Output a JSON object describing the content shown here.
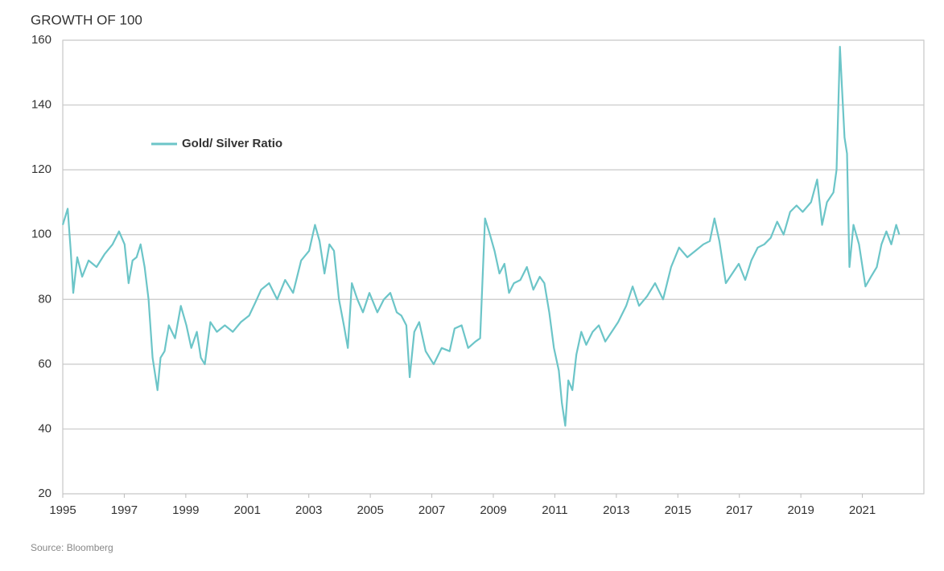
{
  "chart_data": {
    "type": "line",
    "title": "GROWTH OF 100",
    "source": "Source: Bloomberg",
    "x": [
      1995.0,
      1995.16,
      1995.26,
      1995.34,
      1995.47,
      1995.63,
      1995.84,
      1996.1,
      1996.36,
      1996.62,
      1996.83,
      1997.01,
      1997.14,
      1997.27,
      1997.4,
      1997.53,
      1997.66,
      1997.79,
      1997.92,
      1998.08,
      1998.18,
      1998.31,
      1998.45,
      1998.65,
      1998.84,
      1999.02,
      1999.18,
      1999.36,
      1999.49,
      1999.62,
      1999.8,
      2000.01,
      2000.27,
      2000.53,
      2000.79,
      2001.06,
      2001.26,
      2001.45,
      2001.71,
      2001.97,
      2002.23,
      2002.49,
      2002.75,
      2003.01,
      2003.2,
      2003.35,
      2003.51,
      2003.67,
      2003.82,
      2003.98,
      2004.14,
      2004.27,
      2004.4,
      2004.58,
      2004.76,
      2004.97,
      2005.23,
      2005.44,
      2005.65,
      2005.86,
      2006.01,
      2006.17,
      2006.28,
      2006.43,
      2006.59,
      2006.8,
      2007.06,
      2007.32,
      2007.58,
      2007.74,
      2007.97,
      2008.18,
      2008.42,
      2008.57,
      2008.73,
      2008.89,
      2009.04,
      2009.2,
      2009.36,
      2009.51,
      2009.67,
      2009.88,
      2010.09,
      2010.3,
      2010.51,
      2010.66,
      2010.82,
      2010.97,
      2011.13,
      2011.23,
      2011.34,
      2011.44,
      2011.57,
      2011.7,
      2011.86,
      2012.02,
      2012.23,
      2012.43,
      2012.64,
      2012.85,
      2013.06,
      2013.32,
      2013.53,
      2013.74,
      2014.0,
      2014.26,
      2014.52,
      2014.78,
      2015.04,
      2015.31,
      2015.57,
      2015.83,
      2016.04,
      2016.19,
      2016.35,
      2016.56,
      2016.77,
      2016.98,
      2017.19,
      2017.39,
      2017.6,
      2017.81,
      2018.02,
      2018.23,
      2018.44,
      2018.65,
      2018.86,
      2019.06,
      2019.33,
      2019.53,
      2019.69,
      2019.85,
      2020.06,
      2020.16,
      2020.27,
      2020.34,
      2020.42,
      2020.5,
      2020.58,
      2020.71,
      2020.89,
      2021.1,
      2021.28,
      2021.47,
      2021.62,
      2021.78,
      2021.94,
      2022.1,
      2022.2
    ],
    "series": [
      {
        "name": "Gold/ Silver Ratio",
        "color": "#6cc5c8",
        "values": [
          103,
          108,
          95,
          82,
          93,
          87,
          92,
          90,
          94,
          97,
          101,
          97,
          85,
          92,
          93,
          97,
          90,
          80,
          62,
          52,
          62,
          64,
          72,
          68,
          78,
          72,
          65,
          70,
          62,
          60,
          73,
          70,
          72,
          70,
          73,
          75,
          79,
          83,
          85,
          80,
          86,
          82,
          92,
          95,
          103,
          98,
          88,
          97,
          95,
          80,
          72,
          65,
          85,
          80,
          76,
          82,
          76,
          80,
          82,
          76,
          75,
          72,
          56,
          70,
          73,
          64,
          60,
          65,
          64,
          71,
          72,
          65,
          67,
          68,
          105,
          100,
          95,
          88,
          91,
          82,
          85,
          86,
          90,
          83,
          87,
          85,
          76,
          65,
          58,
          48,
          41,
          55,
          52,
          63,
          70,
          66,
          70,
          72,
          67,
          70,
          73,
          78,
          84,
          78,
          81,
          85,
          80,
          90,
          96,
          93,
          95,
          97,
          98,
          105,
          98,
          85,
          88,
          91,
          86,
          92,
          96,
          97,
          99,
          104,
          100,
          107,
          109,
          107,
          110,
          117,
          103,
          110,
          113,
          120,
          158,
          145,
          130,
          125,
          90,
          103,
          97,
          84,
          87,
          90,
          97,
          101,
          97,
          103,
          100
        ]
      }
    ],
    "xlim": [
      1995,
      2023
    ],
    "xticks": [
      1995,
      1997,
      1999,
      2001,
      2003,
      2005,
      2007,
      2009,
      2011,
      2013,
      2015,
      2017,
      2019,
      2021
    ],
    "ylim": [
      20,
      160
    ],
    "yticks": [
      20,
      40,
      60,
      80,
      100,
      120,
      140,
      160
    ],
    "grid": true
  }
}
